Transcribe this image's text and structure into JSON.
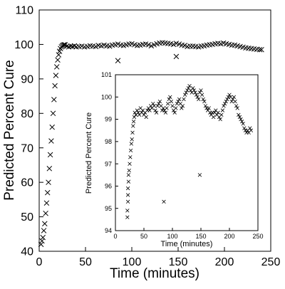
{
  "chart_data": [
    {
      "id": "main",
      "type": "scatter",
      "xlabel": "Time (minutes)",
      "ylabel": "Predicted Percent Cure",
      "xlim": [
        0,
        250
      ],
      "ylim": [
        40,
        110
      ],
      "xticks": [
        0,
        50,
        100,
        150,
        200,
        250
      ],
      "yticks": [
        40,
        50,
        60,
        70,
        80,
        90,
        100,
        110
      ],
      "grid": false,
      "marker": "x",
      "series": [
        {
          "x": [
            2,
            3,
            4,
            5,
            6,
            7,
            8,
            9,
            10,
            11,
            12,
            13,
            14,
            15,
            16,
            17,
            18,
            19,
            20,
            21,
            22,
            23,
            24,
            25,
            26,
            27,
            28,
            30,
            32,
            34,
            36,
            38,
            40,
            43,
            46,
            49,
            52,
            55,
            58,
            61,
            64,
            67,
            70,
            73,
            76,
            79,
            82,
            85,
            88,
            91,
            94,
            97,
            100,
            103,
            106,
            109,
            112,
            115,
            118,
            121,
            124,
            127,
            130,
            133,
            136,
            139,
            142,
            145,
            148,
            151,
            154,
            157,
            160,
            163,
            166,
            169,
            172,
            175,
            178,
            181,
            184,
            187,
            190,
            193,
            196,
            199,
            202,
            205,
            208,
            211,
            214,
            217,
            220,
            223,
            226,
            229,
            232,
            235,
            238,
            240,
            85,
            148
          ],
          "y": [
            42,
            43,
            44,
            46,
            48,
            51,
            54,
            57,
            60,
            64,
            68,
            72,
            76,
            80,
            84,
            88,
            91,
            93.5,
            95.5,
            97,
            98,
            98.8,
            99.3,
            99.6,
            99.8,
            99.9,
            99.9,
            99.5,
            99.3,
            99.5,
            99.4,
            99.6,
            99.3,
            99.4,
            99.5,
            99.3,
            99.4,
            99.6,
            99.5,
            99.4,
            99.7,
            99.6,
            99.8,
            99.6,
            99.5,
            99.8,
            99.9,
            100.1,
            99.8,
            99.7,
            99.9,
            100.1,
            100.2,
            99.9,
            99.7,
            99.8,
            100.0,
            100.1,
            99.9,
            99.6,
            99.9,
            100.2,
            100.4,
            100.5,
            100.4,
            100.3,
            100.2,
            100.0,
            100.3,
            100.1,
            99.8,
            99.7,
            99.4,
            99.5,
            99.5,
            99.4,
            99.3,
            99.5,
            99.6,
            99.8,
            99.9,
            100.0,
            100.2,
            100.3,
            100.2,
            100.4,
            100.2,
            100.0,
            99.8,
            99.8,
            99.6,
            99.4,
            99.2,
            99.0,
            98.9,
            98.8,
            98.7,
            98.6,
            98.5,
            98.5,
            95.3,
            96.5
          ]
        }
      ]
    },
    {
      "id": "inset",
      "type": "scatter",
      "xlabel": "Time (minutes)",
      "ylabel": "Predicted Percent Cure",
      "xlim": [
        0,
        250
      ],
      "ylim": [
        94,
        101
      ],
      "xticks": [
        0,
        50,
        100,
        150,
        200,
        250
      ],
      "yticks": [
        94,
        95,
        96,
        97,
        98,
        99,
        100,
        101
      ],
      "grid": false,
      "marker": "x",
      "series": [
        {
          "x": [
            21,
            21,
            22,
            22,
            22,
            23,
            23,
            24,
            25,
            26,
            27,
            28,
            29,
            30,
            31,
            32,
            33,
            34,
            36,
            38,
            40,
            42,
            44,
            46,
            48,
            50,
            52,
            54,
            56,
            58,
            60,
            62,
            64,
            66,
            68,
            70,
            72,
            74,
            76,
            78,
            80,
            82,
            84,
            86,
            88,
            90,
            92,
            94,
            96,
            98,
            100,
            102,
            104,
            106,
            108,
            110,
            112,
            114,
            116,
            118,
            120,
            122,
            124,
            126,
            128,
            130,
            132,
            134,
            136,
            138,
            140,
            142,
            144,
            146,
            148,
            150,
            152,
            154,
            156,
            158,
            160,
            162,
            164,
            166,
            168,
            170,
            172,
            174,
            176,
            178,
            180,
            182,
            184,
            186,
            188,
            190,
            192,
            194,
            196,
            198,
            200,
            202,
            204,
            206,
            208,
            210,
            212,
            214,
            216,
            218,
            220,
            222,
            224,
            226,
            228,
            230,
            232,
            234,
            236,
            238,
            85,
            148
          ],
          "y": [
            94.6,
            94.9,
            95.3,
            95.6,
            95.9,
            96.2,
            96.5,
            96.7,
            97.0,
            97.3,
            97.6,
            97.9,
            98.1,
            98.4,
            98.7,
            98.9,
            99.1,
            99.3,
            99.2,
            99.4,
            99.3,
            99.2,
            99.5,
            99.3,
            99.4,
            99.2,
            99.3,
            99.1,
            99.4,
            99.5,
            99.4,
            99.6,
            99.5,
            99.7,
            99.6,
            99.4,
            99.3,
            99.6,
            99.7,
            99.8,
            99.6,
            99.4,
            99.5,
            99.4,
            99.3,
            99.5,
            99.7,
            99.9,
            100.0,
            99.8,
            99.6,
            99.4,
            99.3,
            99.5,
            99.7,
            99.8,
            99.9,
            99.7,
            99.5,
            99.6,
            99.9,
            100.1,
            100.2,
            100.3,
            100.4,
            100.5,
            100.3,
            100.2,
            100.4,
            100.3,
            100.2,
            100.1,
            100.0,
            99.9,
            100.2,
            100.3,
            100.1,
            99.9,
            99.8,
            99.6,
            99.5,
            99.4,
            99.5,
            99.3,
            99.2,
            99.3,
            99.1,
            99.3,
            99.4,
            99.2,
            99.3,
            99.1,
            99.0,
            99.2,
            99.4,
            99.6,
            99.7,
            99.8,
            99.9,
            100.0,
            100.1,
            100.0,
            99.8,
            99.9,
            100.0,
            99.8,
            99.6,
            99.5,
            99.2,
            99.1,
            99.0,
            98.9,
            98.8,
            98.6,
            98.5,
            98.4,
            98.5,
            98.4,
            98.6,
            98.5,
            95.3,
            96.5
          ]
        }
      ]
    }
  ]
}
